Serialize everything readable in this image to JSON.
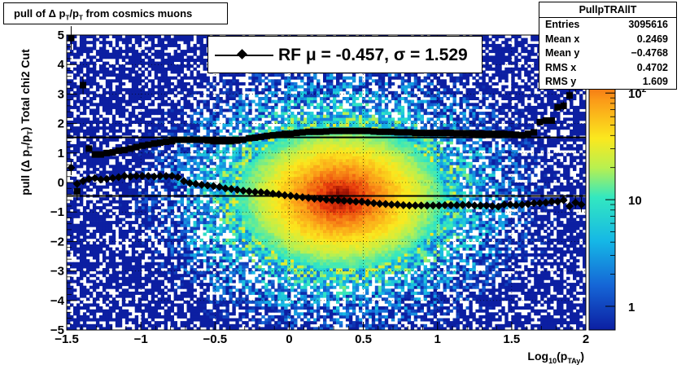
{
  "title": "pull of Δ p_T/p_T from cosmics muons",
  "title_parts": {
    "pre": "pull of Δ p",
    "sub1": "T",
    "mid": "/p",
    "sub2": "T",
    "post": " from cosmics muons"
  },
  "ylabel_parts": {
    "pre": "pull (Δ p",
    "sub1": "T",
    "mid": "/p",
    "sub2": "T",
    "post": ")  Total chi2 Cut"
  },
  "xlabel_parts": {
    "pre": "Log",
    "sub1": "10",
    "mid": "(p",
    "sub2": "TAy",
    "post": ")"
  },
  "legend": {
    "text": "RF μ = -0.457, σ =   1.529"
  },
  "stats": {
    "name": "PullpTRAllT",
    "rows": [
      {
        "label": "Entries",
        "value": "3095616"
      },
      {
        "label": "Mean x",
        "value": "0.2469"
      },
      {
        "label": "Mean y",
        "value": "−0.4768"
      },
      {
        "label": "RMS x",
        "value": "0.4702"
      },
      {
        "label": "RMS y",
        "value": "1.609"
      }
    ]
  },
  "chart_data": {
    "type": "heatmap",
    "xlim": [
      -1.5,
      2
    ],
    "ylim": [
      -5,
      5
    ],
    "x_ticks": [
      "−1.5",
      "−1",
      "−0.5",
      "0",
      "0.5",
      "1",
      "1.5",
      "2"
    ],
    "x_tick_values": [
      -1.5,
      -1,
      -0.5,
      0,
      0.5,
      1,
      1.5,
      2
    ],
    "y_ticks": [
      "−5",
      "−4",
      "−3",
      "−2",
      "−1",
      "0",
      "1",
      "2",
      "3",
      "4",
      "5"
    ],
    "y_tick_values": [
      -5,
      -4,
      -3,
      -2,
      -1,
      0,
      1,
      2,
      3,
      4,
      5
    ],
    "z_scale": "log",
    "z_ticks": [
      "1",
      "10",
      "10^2"
    ],
    "z_tick_values": [
      1,
      10,
      100
    ],
    "hlines": [
      -0.457,
      1.529
    ],
    "grid": true,
    "density_peak": {
      "x": 0.35,
      "y": -0.5
    },
    "series": [
      {
        "marker": "diamond",
        "x": [
          -1.47,
          -1.43,
          -1.39,
          -1.35,
          -1.31,
          -1.27,
          -1.23,
          -1.19,
          -1.15,
          -1.11,
          -1.07,
          -1.03,
          -0.99,
          -0.95,
          -0.91,
          -0.87,
          -0.83,
          -0.79,
          -0.75,
          -0.71,
          -0.67,
          -0.63,
          -0.59,
          -0.55,
          -0.51,
          -0.47,
          -0.43,
          -0.39,
          -0.35,
          -0.31,
          -0.27,
          -0.23,
          -0.19,
          -0.15,
          -0.11,
          -0.07,
          -0.03,
          0.01,
          0.05,
          0.09,
          0.13,
          0.17,
          0.21,
          0.25,
          0.29,
          0.33,
          0.37,
          0.41,
          0.45,
          0.49,
          0.53,
          0.57,
          0.61,
          0.65,
          0.69,
          0.73,
          0.77,
          0.81,
          0.85,
          0.89,
          0.93,
          0.97,
          1.01,
          1.05,
          1.09,
          1.13,
          1.17,
          1.21,
          1.25,
          1.29,
          1.33,
          1.37,
          1.41,
          1.45,
          1.49,
          1.53,
          1.57,
          1.61,
          1.65,
          1.69,
          1.73,
          1.77,
          1.81,
          1.85,
          1.89,
          1.93,
          1.97
        ],
        "y": [
          0.5,
          -0.05,
          0.05,
          0.12,
          0.15,
          0.1,
          0.12,
          0.15,
          0.18,
          0.22,
          0.2,
          0.22,
          0.22,
          0.22,
          0.2,
          0.22,
          0.22,
          0.22,
          0.18,
          0.05,
          -0.02,
          -0.05,
          -0.08,
          -0.1,
          -0.12,
          -0.15,
          -0.2,
          -0.22,
          -0.25,
          -0.28,
          -0.3,
          -0.32,
          -0.33,
          -0.35,
          -0.38,
          -0.4,
          -0.43,
          -0.45,
          -0.48,
          -0.5,
          -0.52,
          -0.55,
          -0.55,
          -0.58,
          -0.6,
          -0.6,
          -0.62,
          -0.63,
          -0.65,
          -0.65,
          -0.68,
          -0.7,
          -0.72,
          -0.73,
          -0.75,
          -0.75,
          -0.77,
          -0.78,
          -0.78,
          -0.78,
          -0.78,
          -0.78,
          -0.78,
          -0.77,
          -0.77,
          -0.77,
          -0.76,
          -0.76,
          -0.78,
          -0.78,
          -0.78,
          -0.8,
          -0.82,
          -0.75,
          -0.75,
          -0.77,
          -0.75,
          -0.73,
          -0.7,
          -0.7,
          -0.68,
          -0.65,
          -0.65,
          -0.6,
          -0.8,
          -0.68,
          -0.75
        ],
        "err": [
          0.25,
          0.1,
          0.06,
          0.05,
          0.04,
          0.04,
          0.04,
          0.03,
          0.03,
          0.03,
          0.03,
          0.03,
          0.03,
          0.03,
          0.03,
          0.03,
          0.02,
          0.02,
          0.02,
          0.02,
          0.02,
          0.02,
          0.02,
          0.02,
          0.02,
          0.02,
          0.02,
          0.02,
          0.02,
          0.02,
          0.02,
          0.02,
          0.02,
          0.02,
          0.02,
          0.02,
          0.02,
          0.02,
          0.02,
          0.02,
          0.02,
          0.02,
          0.02,
          0.02,
          0.02,
          0.02,
          0.02,
          0.02,
          0.02,
          0.02,
          0.02,
          0.02,
          0.02,
          0.02,
          0.02,
          0.02,
          0.02,
          0.02,
          0.02,
          0.02,
          0.02,
          0.02,
          0.02,
          0.02,
          0.02,
          0.02,
          0.03,
          0.03,
          0.03,
          0.03,
          0.03,
          0.03,
          0.04,
          0.04,
          0.04,
          0.05,
          0.05,
          0.05,
          0.06,
          0.06,
          0.07,
          0.08,
          0.1,
          0.12,
          0.15,
          0.2,
          0.25
        ]
      },
      {
        "marker": "square",
        "x": [
          -1.47,
          -1.43,
          -1.39,
          -1.35,
          -1.31,
          -1.27,
          -1.23,
          -1.19,
          -1.15,
          -1.11,
          -1.07,
          -1.03,
          -0.99,
          -0.95,
          -0.91,
          -0.87,
          -0.83,
          -0.79,
          -0.75,
          -0.71,
          -0.67,
          -0.63,
          -0.59,
          -0.55,
          -0.51,
          -0.47,
          -0.43,
          -0.39,
          -0.35,
          -0.31,
          -0.27,
          -0.23,
          -0.19,
          -0.15,
          -0.11,
          -0.07,
          -0.03,
          0.01,
          0.05,
          0.09,
          0.13,
          0.17,
          0.21,
          0.25,
          0.29,
          0.33,
          0.37,
          0.41,
          0.45,
          0.49,
          0.53,
          0.57,
          0.61,
          0.65,
          0.69,
          0.73,
          0.77,
          0.81,
          0.85,
          0.89,
          0.93,
          0.97,
          1.01,
          1.05,
          1.09,
          1.13,
          1.17,
          1.21,
          1.25,
          1.29,
          1.33,
          1.37,
          1.41,
          1.45,
          1.49,
          1.53,
          1.57,
          1.61,
          1.65,
          1.69,
          1.73,
          1.77,
          1.81,
          1.85,
          1.89,
          1.93,
          1.97
        ],
        "y": [
          4.9,
          -0.3,
          3.3,
          1.15,
          0.95,
          0.95,
          1.0,
          1.02,
          1.08,
          1.1,
          1.15,
          1.2,
          1.25,
          1.28,
          1.32,
          1.35,
          1.38,
          1.4,
          1.45,
          1.45,
          1.45,
          1.45,
          1.45,
          1.42,
          1.4,
          1.4,
          1.4,
          1.4,
          1.42,
          1.45,
          1.5,
          1.52,
          1.55,
          1.58,
          1.6,
          1.62,
          1.65,
          1.65,
          1.68,
          1.7,
          1.72,
          1.72,
          1.72,
          1.73,
          1.75,
          1.75,
          1.75,
          1.75,
          1.75,
          1.75,
          1.75,
          1.73,
          1.72,
          1.72,
          1.72,
          1.7,
          1.7,
          1.7,
          1.68,
          1.68,
          1.68,
          1.68,
          1.68,
          1.68,
          1.68,
          1.67,
          1.67,
          1.67,
          1.66,
          1.66,
          1.65,
          1.65,
          1.65,
          1.65,
          1.63,
          1.62,
          1.6,
          1.65,
          1.7,
          2.05,
          2.1,
          2.1,
          2.55,
          2.6,
          2.95,
          3.3,
          4.9
        ],
        "err": [
          0.4,
          0.3,
          0.3,
          0.1,
          0.06,
          0.05,
          0.04,
          0.04,
          0.03,
          0.03,
          0.03,
          0.03,
          0.03,
          0.02,
          0.02,
          0.02,
          0.02,
          0.02,
          0.02,
          0.02,
          0.02,
          0.02,
          0.02,
          0.02,
          0.02,
          0.02,
          0.02,
          0.02,
          0.02,
          0.02,
          0.02,
          0.02,
          0.02,
          0.02,
          0.02,
          0.02,
          0.02,
          0.02,
          0.02,
          0.02,
          0.02,
          0.02,
          0.02,
          0.02,
          0.02,
          0.02,
          0.02,
          0.02,
          0.02,
          0.02,
          0.02,
          0.02,
          0.02,
          0.02,
          0.02,
          0.02,
          0.02,
          0.02,
          0.02,
          0.02,
          0.02,
          0.02,
          0.02,
          0.02,
          0.02,
          0.02,
          0.02,
          0.02,
          0.02,
          0.02,
          0.02,
          0.02,
          0.03,
          0.03,
          0.03,
          0.04,
          0.04,
          0.05,
          0.05,
          0.06,
          0.08,
          0.1,
          0.12,
          0.15,
          0.2,
          0.25,
          0.4
        ]
      }
    ]
  }
}
